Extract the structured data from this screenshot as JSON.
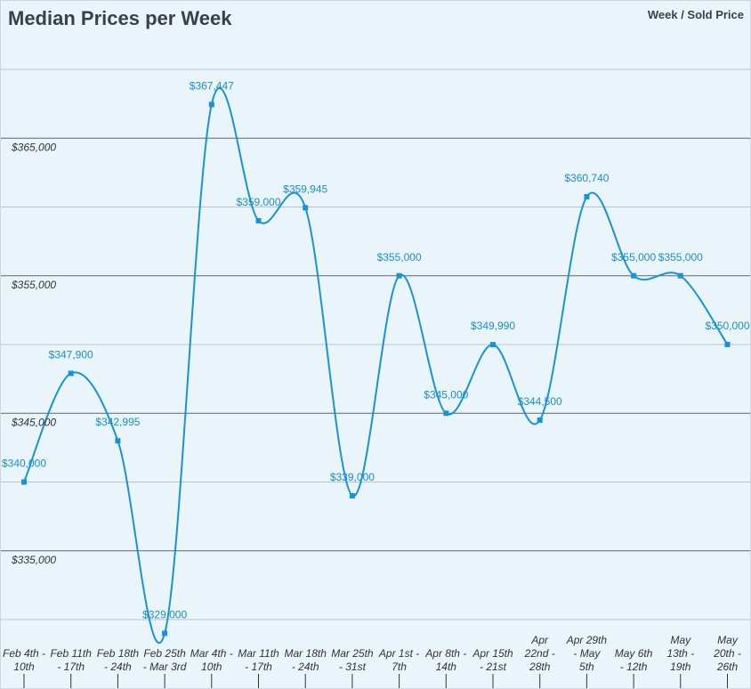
{
  "title": "Median Prices per Week",
  "legend_label": "Week / Sold Price",
  "colors": {
    "line": "#1a93d6",
    "label": "#1a8fd0",
    "grid_major": "#5c6670",
    "grid_minor": "#b8c4ce",
    "axis_text": "#333333",
    "background": "#eaf4fb"
  },
  "chart_data": {
    "type": "line",
    "title": "Median Prices per Week",
    "legend": "Week / Sold Price",
    "categories": [
      [
        "Feb 4th -",
        "10th"
      ],
      [
        "Feb 11th",
        "- 17th"
      ],
      [
        "Feb 18th",
        "- 24th"
      ],
      [
        "Feb 25th",
        "- Mar 3rd"
      ],
      [
        "Mar 4th -",
        "10th"
      ],
      [
        "Mar 11th",
        "- 17th"
      ],
      [
        "Mar 18th",
        "- 24th"
      ],
      [
        "Mar 25th",
        "- 31st"
      ],
      [
        "Apr 1st -",
        "7th"
      ],
      [
        "Apr 8th -",
        "14th"
      ],
      [
        "Apr 15th",
        "- 21st"
      ],
      [
        "Apr",
        "22nd -",
        "28th"
      ],
      [
        "Apr 29th",
        "- May",
        "5th"
      ],
      [
        "May 6th",
        "- 12th"
      ],
      [
        "May",
        "13th -",
        "19th"
      ],
      [
        "May",
        "20th -",
        "26th"
      ]
    ],
    "values": [
      340000,
      347900,
      342995,
      329000,
      367447,
      359000,
      359945,
      339000,
      355000,
      345000,
      349990,
      344500,
      360740,
      355000,
      355000,
      350000
    ],
    "data_labels": [
      "$340,000",
      "$347,900",
      "$342,995",
      "$329,000",
      "$367,447",
      "$359,000",
      "$359,945",
      "$339,000",
      "$355,000",
      "$345,000",
      "$349,990",
      "$344,500",
      "$360,740",
      "$355,000",
      "$355,000",
      "$350,000"
    ],
    "y_ticks": [
      335000,
      345000,
      355000,
      365000
    ],
    "y_tick_labels": [
      "$335,000",
      "$345,000",
      "$355,000",
      "$365,000"
    ],
    "grid_lines": [
      330000,
      335000,
      340000,
      345000,
      350000,
      355000,
      360000,
      365000,
      370000
    ],
    "major_grid": [
      335000,
      345000,
      355000,
      365000
    ],
    "ylim": [
      330000,
      370000
    ],
    "grid": true,
    "xlabel": "",
    "ylabel": ""
  }
}
